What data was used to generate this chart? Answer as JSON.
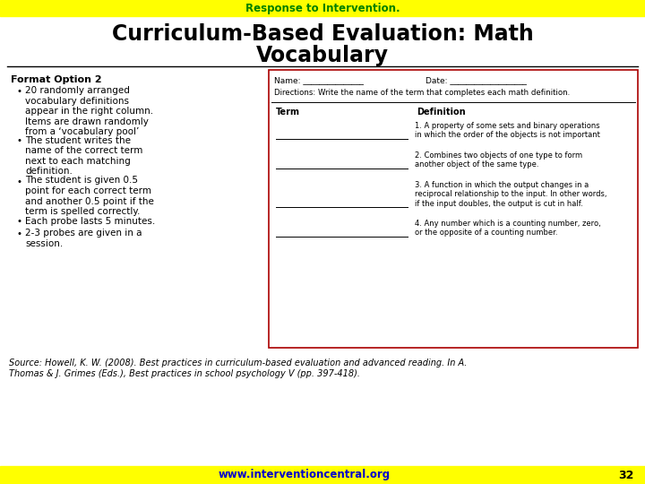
{
  "bg_color": "#ffffff",
  "yellow_bar_color": "#ffff00",
  "header_green_color": "#008000",
  "header_black_color": "#000000",
  "title_line1": "Curriculum-Based Evaluation: Math",
  "title_line2": "Vocabulary",
  "rti_text": "Response to Intervention.",
  "footer_bg": "#ffff00",
  "footer_text": "www.interventioncentral.org",
  "footer_text_color": "#0000cc",
  "page_num": "32",
  "left_header": "Format Option 2",
  "bullet_points": [
    "20 randomly arranged\nvocabulary definitions\nappear in the right column.\nItems are drawn randomly\nfrom a ‘vocabulary pool’",
    "The student writes the\nname of the correct term\nnext to each matching\ndefinition.",
    "The student is given 0.5\npoint for each correct term\nand another 0.5 point if the\nterm is spelled correctly.",
    "Each probe lasts 5 minutes.",
    "2-3 probes are given in a\nsession."
  ],
  "source_text": "Source: Howell, K. W. (2008). Best practices in curriculum-based evaluation and advanced reading. In A.\nThomas & J. Grimes (Eds.), Best practices in school psychology V (pp. 397-418).",
  "form_name_label": "Name: _______________",
  "form_date_label": "Date: ___________________",
  "form_directions": "Directions: Write the name of the term that completes each math definition.",
  "form_term_header": "Term",
  "form_def_header": "Definition",
  "form_definitions": [
    "1. A property of some sets and binary operations\nin which the order of the objects is not important",
    "2. Combines two objects of one type to form\nanother object of the same type.",
    "3. A function in which the output changes in a\nreciprocal relationship to the input. In other words,\nif the input doubles, the output is cut in half.",
    "4. Any number which is a counting number, zero,\nor the opposite of a counting number."
  ],
  "def_line_counts": [
    2,
    2,
    3,
    2
  ]
}
